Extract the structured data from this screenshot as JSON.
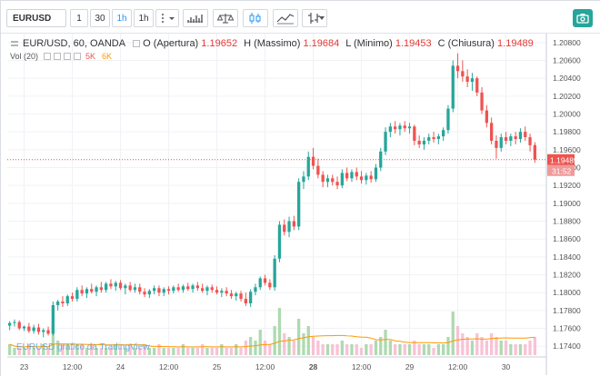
{
  "toolbar": {
    "symbol": "EURUSD",
    "intervals": [
      "1",
      "30",
      "1h",
      "1h"
    ],
    "active_interval_index": 2,
    "more_icon": "vertical-dots-icon",
    "chart_type_icon": "candles-icon",
    "indicators_icon": "indicators-icon",
    "compare_icon": "compare-icon",
    "line_icon": "line-chart-icon",
    "bars_icon": "ohlc-icon",
    "snapshot_icon": "camera-icon"
  },
  "legend": {
    "title": "EUR/USD, 60, OANDA",
    "o_label": "O (Apertura)",
    "o_value": "1.19652",
    "h_label": "H (Massimo)",
    "h_value": "1.19684",
    "l_label": "L (Minimo)",
    "l_value": "1.19453",
    "c_label": "C (Chiusura)",
    "c_value": "1.19489",
    "vol_label": "Vol (20)",
    "vol_value1": "5K",
    "vol_value2": "6K"
  },
  "watermark": "EURUSD grafico da TradingView",
  "price_scale": {
    "ticks": [
      "1.20800",
      "1.20600",
      "1.20400",
      "1.20200",
      "1.20000",
      "1.19800",
      "1.19600",
      "1.19400",
      "1.19200",
      "1.19000",
      "1.18800",
      "1.18600",
      "1.18400",
      "1.18200",
      "1.18000",
      "1.17800",
      "1.17600",
      "1.17400"
    ],
    "current_price": "1.19489",
    "countdown": "31:52"
  },
  "time_scale": {
    "labels": [
      "23",
      "12:00",
      "24",
      "12:00",
      "25",
      "12:00",
      "28",
      "12:00",
      "29",
      "12:00",
      "30"
    ]
  },
  "colors": {
    "up": "#26a69a",
    "down": "#ef5350",
    "price_line": "#ef5350",
    "volume_ma": "#ff9800",
    "accent": "#2196f3"
  },
  "chart_data": {
    "type": "candlestick",
    "symbol": "EUR/USD",
    "timeframe": "60",
    "ylim": [
      1.1728,
      1.209
    ],
    "last_close": 1.19489,
    "candles": [
      [
        1.1763,
        1.1768,
        1.1758,
        1.1766
      ],
      [
        1.1766,
        1.177,
        1.1762,
        1.1767
      ],
      [
        1.1767,
        1.1769,
        1.1758,
        1.176
      ],
      [
        1.176,
        1.1763,
        1.1757,
        1.1762
      ],
      [
        1.1762,
        1.1766,
        1.1755,
        1.1757
      ],
      [
        1.1757,
        1.1764,
        1.1754,
        1.1761
      ],
      [
        1.1761,
        1.1765,
        1.1753,
        1.1756
      ],
      [
        1.1756,
        1.176,
        1.175,
        1.1758
      ],
      [
        1.1758,
        1.1762,
        1.1752,
        1.1754
      ],
      [
        1.1754,
        1.179,
        1.1752,
        1.1786
      ],
      [
        1.1786,
        1.1792,
        1.178,
        1.179
      ],
      [
        1.179,
        1.1796,
        1.1784,
        1.1788
      ],
      [
        1.1788,
        1.1798,
        1.1785,
        1.1796
      ],
      [
        1.1796,
        1.18,
        1.179,
        1.1793
      ],
      [
        1.1793,
        1.1806,
        1.179,
        1.1803
      ],
      [
        1.1803,
        1.1808,
        1.1796,
        1.1799
      ],
      [
        1.1799,
        1.1806,
        1.1794,
        1.1804
      ],
      [
        1.1804,
        1.181,
        1.1799,
        1.1801
      ],
      [
        1.1801,
        1.1808,
        1.1796,
        1.1806
      ],
      [
        1.1806,
        1.1812,
        1.18,
        1.1803
      ],
      [
        1.1803,
        1.1812,
        1.18,
        1.181
      ],
      [
        1.181,
        1.1815,
        1.1804,
        1.1807
      ],
      [
        1.1807,
        1.1813,
        1.1802,
        1.1811
      ],
      [
        1.1811,
        1.1814,
        1.1803,
        1.1805
      ],
      [
        1.1805,
        1.181,
        1.1798,
        1.1808
      ],
      [
        1.1808,
        1.1812,
        1.1801,
        1.1803
      ],
      [
        1.1803,
        1.181,
        1.18,
        1.1806
      ],
      [
        1.1806,
        1.181,
        1.1798,
        1.1801
      ],
      [
        1.1801,
        1.1805,
        1.1795,
        1.1798
      ],
      [
        1.1798,
        1.1804,
        1.1794,
        1.1802
      ],
      [
        1.1802,
        1.1808,
        1.1798,
        1.1805
      ],
      [
        1.1805,
        1.1808,
        1.1796,
        1.18
      ],
      [
        1.18,
        1.1806,
        1.1796,
        1.1804
      ],
      [
        1.1804,
        1.1807,
        1.1798,
        1.1802
      ],
      [
        1.1802,
        1.1808,
        1.1799,
        1.1806
      ],
      [
        1.1806,
        1.181,
        1.1801,
        1.1803
      ],
      [
        1.1803,
        1.1809,
        1.18,
        1.1807
      ],
      [
        1.1807,
        1.1811,
        1.1802,
        1.1804
      ],
      [
        1.1804,
        1.181,
        1.18,
        1.1808
      ],
      [
        1.1808,
        1.1812,
        1.1802,
        1.1805
      ],
      [
        1.1805,
        1.181,
        1.18,
        1.1802
      ],
      [
        1.1802,
        1.1808,
        1.1797,
        1.1806
      ],
      [
        1.1806,
        1.1809,
        1.18,
        1.1803
      ],
      [
        1.1803,
        1.1807,
        1.1798,
        1.18
      ],
      [
        1.18,
        1.1805,
        1.1795,
        1.1802
      ],
      [
        1.1802,
        1.1806,
        1.1796,
        1.1799
      ],
      [
        1.1799,
        1.1803,
        1.1793,
        1.1796
      ],
      [
        1.1796,
        1.1801,
        1.1791,
        1.1799
      ],
      [
        1.1799,
        1.1802,
        1.179,
        1.1793
      ],
      [
        1.1793,
        1.18,
        1.1785,
        1.1788
      ],
      [
        1.1788,
        1.1804,
        1.1784,
        1.1801
      ],
      [
        1.1801,
        1.181,
        1.1797,
        1.1806
      ],
      [
        1.1806,
        1.1818,
        1.1803,
        1.1816
      ],
      [
        1.1816,
        1.182,
        1.1808,
        1.1811
      ],
      [
        1.1811,
        1.1815,
        1.1803,
        1.1806
      ],
      [
        1.1806,
        1.1842,
        1.1802,
        1.1838
      ],
      [
        1.1838,
        1.188,
        1.1834,
        1.1876
      ],
      [
        1.1876,
        1.1882,
        1.1864,
        1.1868
      ],
      [
        1.1868,
        1.1885,
        1.1862,
        1.188
      ],
      [
        1.188,
        1.1886,
        1.187,
        1.1874
      ],
      [
        1.1874,
        1.1928,
        1.187,
        1.1924
      ],
      [
        1.1924,
        1.1936,
        1.1916,
        1.193
      ],
      [
        1.193,
        1.1958,
        1.1926,
        1.1952
      ],
      [
        1.1952,
        1.1962,
        1.1938,
        1.1942
      ],
      [
        1.1942,
        1.195,
        1.1928,
        1.1932
      ],
      [
        1.1932,
        1.1936,
        1.1918,
        1.1924
      ],
      [
        1.1924,
        1.1932,
        1.1918,
        1.1928
      ],
      [
        1.1928,
        1.1932,
        1.192,
        1.1924
      ],
      [
        1.1924,
        1.193,
        1.1916,
        1.192
      ],
      [
        1.192,
        1.1938,
        1.1917,
        1.1934
      ],
      [
        1.1934,
        1.194,
        1.1925,
        1.1928
      ],
      [
        1.1928,
        1.1938,
        1.1924,
        1.1935
      ],
      [
        1.1935,
        1.194,
        1.1926,
        1.193
      ],
      [
        1.193,
        1.1936,
        1.1922,
        1.1926
      ],
      [
        1.1926,
        1.1934,
        1.1921,
        1.1931
      ],
      [
        1.1931,
        1.1936,
        1.1923,
        1.1927
      ],
      [
        1.1927,
        1.1944,
        1.1924,
        1.194
      ],
      [
        1.194,
        1.1962,
        1.1936,
        1.1958
      ],
      [
        1.1958,
        1.1985,
        1.1954,
        1.198
      ],
      [
        1.198,
        1.199,
        1.1974,
        1.1986
      ],
      [
        1.1986,
        1.1992,
        1.1978,
        1.1983
      ],
      [
        1.1983,
        1.199,
        1.1976,
        1.1987
      ],
      [
        1.1987,
        1.1992,
        1.198,
        1.1984
      ],
      [
        1.1984,
        1.199,
        1.1978,
        1.1986
      ],
      [
        1.1986,
        1.1988,
        1.1965,
        1.197
      ],
      [
        1.197,
        1.1976,
        1.1962,
        1.1966
      ],
      [
        1.1966,
        1.1974,
        1.196,
        1.197
      ],
      [
        1.197,
        1.1978,
        1.1966,
        1.1974
      ],
      [
        1.1974,
        1.198,
        1.1968,
        1.1972
      ],
      [
        1.1972,
        1.1978,
        1.1966,
        1.1975
      ],
      [
        1.1975,
        1.1985,
        1.197,
        1.1982
      ],
      [
        1.1982,
        1.201,
        1.1978,
        1.2006
      ],
      [
        1.2006,
        1.206,
        1.2002,
        1.2054
      ],
      [
        1.2054,
        1.2068,
        1.204,
        1.2048
      ],
      [
        1.2048,
        1.206,
        1.2036,
        1.2042
      ],
      [
        1.2042,
        1.205,
        1.203,
        1.2036
      ],
      [
        1.2036,
        1.2046,
        1.2026,
        1.204
      ],
      [
        1.204,
        1.2042,
        1.202,
        1.2024
      ],
      [
        1.2024,
        1.203,
        1.2,
        1.2004
      ],
      [
        1.2004,
        1.201,
        1.1985,
        1.199
      ],
      [
        1.199,
        1.1996,
        1.1966,
        1.197
      ],
      [
        1.197,
        1.1976,
        1.195,
        1.1962
      ],
      [
        1.1962,
        1.1978,
        1.1958,
        1.1974
      ],
      [
        1.1974,
        1.198,
        1.1966,
        1.197
      ],
      [
        1.197,
        1.1978,
        1.1964,
        1.1975
      ],
      [
        1.1975,
        1.198,
        1.1966,
        1.1972
      ],
      [
        1.1972,
        1.1984,
        1.1968,
        1.198
      ],
      [
        1.198,
        1.1986,
        1.197,
        1.1974
      ],
      [
        1.1974,
        1.1978,
        1.1958,
        1.1965
      ],
      [
        1.19652,
        1.19684,
        1.19453,
        1.19489
      ]
    ],
    "volumes": [
      3,
      2,
      2,
      2,
      3,
      2,
      2,
      3,
      2,
      9,
      4,
      3,
      3,
      2,
      3,
      3,
      2,
      3,
      2,
      2,
      2,
      2,
      3,
      2,
      2,
      3,
      2,
      2,
      3,
      2,
      2,
      3,
      2,
      2,
      2,
      2,
      3,
      2,
      2,
      2,
      3,
      2,
      2,
      2,
      3,
      2,
      2,
      3,
      2,
      4,
      5,
      4,
      7,
      4,
      3,
      8,
      13,
      6,
      5,
      4,
      10,
      6,
      8,
      5,
      4,
      3,
      3,
      3,
      3,
      4,
      3,
      3,
      3,
      2,
      3,
      3,
      4,
      5,
      7,
      4,
      3,
      3,
      3,
      3,
      4,
      3,
      3,
      3,
      2,
      3,
      3,
      5,
      12,
      8,
      6,
      5,
      4,
      6,
      5,
      4,
      6,
      5,
      4,
      4,
      3,
      3,
      3,
      3,
      4,
      5
    ]
  }
}
